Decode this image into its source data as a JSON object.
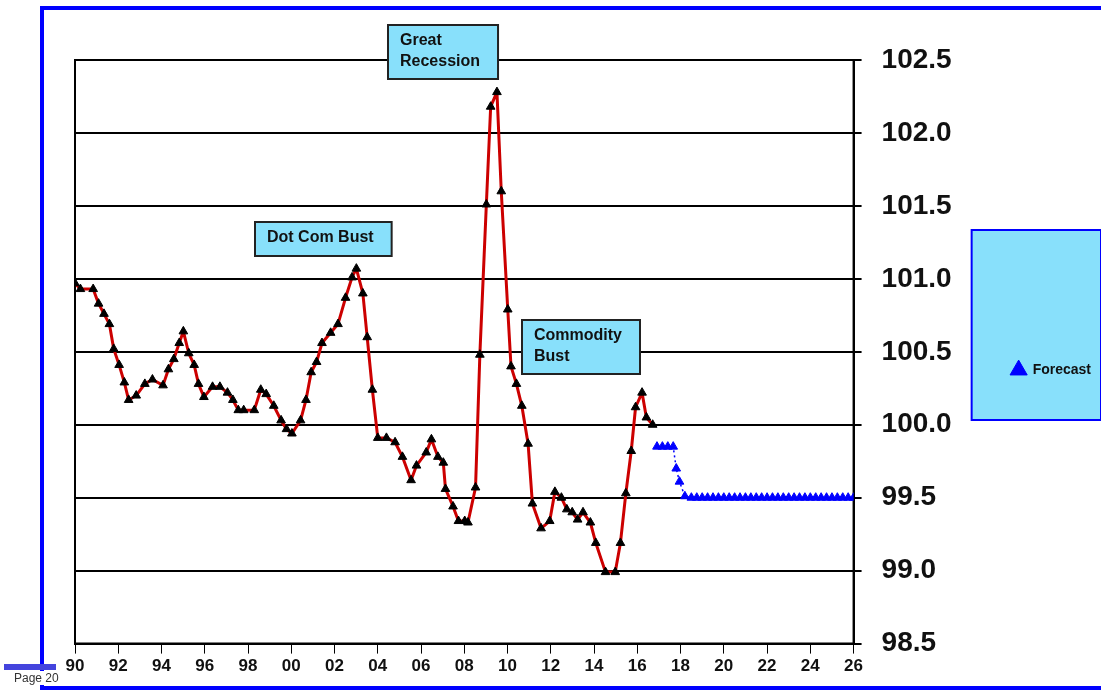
{
  "chart_data": {
    "type": "line",
    "xlim": [
      1990,
      2026
    ],
    "xticks": [
      {
        "value": 1990,
        "label": "90"
      },
      {
        "value": 1992,
        "label": "92"
      },
      {
        "value": 1994,
        "label": "94"
      },
      {
        "value": 1996,
        "label": "96"
      },
      {
        "value": 1998,
        "label": "98"
      },
      {
        "value": 2000,
        "label": "00"
      },
      {
        "value": 2002,
        "label": "02"
      },
      {
        "value": 2004,
        "label": "04"
      },
      {
        "value": 2006,
        "label": "06"
      },
      {
        "value": 2008,
        "label": "08"
      },
      {
        "value": 2010,
        "label": "10"
      },
      {
        "value": 2012,
        "label": "12"
      },
      {
        "value": 2014,
        "label": "14"
      },
      {
        "value": 2016,
        "label": "16"
      },
      {
        "value": 2018,
        "label": "18"
      },
      {
        "value": 2020,
        "label": "20"
      },
      {
        "value": 2022,
        "label": "22"
      },
      {
        "value": 2024,
        "label": "24"
      },
      {
        "value": 2026,
        "label": "26"
      }
    ],
    "ylim": [
      98.5,
      102.5
    ],
    "yticks": [
      {
        "value": 98.5,
        "label": "98.5"
      },
      {
        "value": 99,
        "label": "99.0"
      },
      {
        "value": 99.5,
        "label": "99.5"
      },
      {
        "value": 100,
        "label": "100.0"
      },
      {
        "value": 100.5,
        "label": "100.5"
      },
      {
        "value": 101,
        "label": "101.0"
      },
      {
        "value": 101.5,
        "label": "101.5"
      },
      {
        "value": 102,
        "label": "102.0"
      },
      {
        "value": 102.5,
        "label": "102.5"
      }
    ],
    "grid": "y",
    "legend": "right",
    "marker": "triangle",
    "line_style": "solid",
    "series": [
      {
        "color": "#cc0000",
        "x": [
          1990,
          1990.25,
          1990.84,
          1991.09,
          1991.34,
          1991.59,
          1991.79,
          1992.04,
          1992.28,
          1992.48,
          1992.83,
          1993.23,
          1993.58,
          1994.07,
          1994.32,
          1994.57,
          1994.82,
          1995.01,
          1995.26,
          1995.51,
          1995.71,
          1995.96,
          1996.36,
          1996.7,
          1997.05,
          1997.3,
          1997.55,
          1997.8,
          1998.29,
          1998.59,
          1998.84,
          1999.19,
          1999.53,
          1999.78,
          2000.03,
          2000.43,
          2000.68,
          2000.92,
          2001.17,
          2001.42,
          2001.82,
          2002.16,
          2002.51,
          2002.81,
          2003.01,
          2003.31,
          2003.51,
          2003.75,
          2004,
          2004.4,
          2004.8,
          2005.14,
          2005.54,
          2005.79,
          2006.24,
          2006.48,
          2006.78,
          2007.03,
          2007.13,
          2007.48,
          2007.73,
          2008.02,
          2008.17,
          2008.52,
          2008.72,
          2009.02,
          2009.22,
          2009.51,
          2009.71,
          2010.01,
          2010.16,
          2010.41,
          2010.66,
          2010.95,
          2011.15,
          2011.55,
          2011.95,
          2012.19,
          2012.49,
          2012.74,
          2012.99,
          2013.24,
          2013.49,
          2013.83,
          2014.08,
          2014.53,
          2014.98,
          2015.22,
          2015.47,
          2015.72,
          2015.92,
          2016.22,
          2016.42,
          2016.71
        ],
        "values": [
          100.97,
          100.93,
          100.93,
          100.83,
          100.76,
          100.69,
          100.52,
          100.41,
          100.29,
          100.17,
          100.2,
          100.28,
          100.31,
          100.27,
          100.38,
          100.45,
          100.56,
          100.64,
          100.49,
          100.41,
          100.28,
          100.19,
          100.26,
          100.26,
          100.22,
          100.17,
          100.1,
          100.1,
          100.1,
          100.24,
          100.21,
          100.13,
          100.03,
          99.97,
          99.94,
          100.03,
          100.17,
          100.36,
          100.43,
          100.56,
          100.63,
          100.69,
          100.87,
          101.01,
          101.07,
          100.9,
          100.6,
          100.24,
          99.91,
          99.91,
          99.88,
          99.78,
          99.62,
          99.72,
          99.81,
          99.9,
          99.78,
          99.74,
          99.56,
          99.44,
          99.34,
          99.34,
          99.33,
          99.57,
          100.48,
          101.51,
          102.18,
          102.28,
          101.6,
          100.79,
          100.4,
          100.28,
          100.13,
          99.87,
          99.46,
          99.29,
          99.34,
          99.54,
          99.5,
          99.42,
          99.4,
          99.35,
          99.4,
          99.33,
          99.19,
          98.99,
          98.99,
          99.19,
          99.53,
          99.82,
          100.12,
          100.22,
          100.05,
          100
        ]
      },
      {
        "name": "Forecast",
        "color": "#0000ff",
        "line_style": "dotted",
        "x": [
          2016.91,
          2017.16,
          2017.41,
          2017.66,
          2017.8,
          2017.95,
          2018.2,
          2018.5,
          2018.75,
          2019,
          2019.25,
          2019.5,
          2019.75,
          2020,
          2020.25,
          2020.5,
          2020.75,
          2021,
          2021.25,
          2021.5,
          2021.75,
          2022,
          2022.25,
          2022.5,
          2022.75,
          2023,
          2023.25,
          2023.5,
          2023.75,
          2024,
          2024.25,
          2024.5,
          2024.75,
          2025,
          2025.25,
          2025.5,
          2025.75,
          2026
        ],
        "values": [
          99.85,
          99.85,
          99.85,
          99.85,
          99.7,
          99.61,
          99.51,
          99.5,
          99.5,
          99.5,
          99.5,
          99.5,
          99.5,
          99.5,
          99.5,
          99.5,
          99.5,
          99.5,
          99.5,
          99.5,
          99.5,
          99.5,
          99.5,
          99.5,
          99.5,
          99.5,
          99.5,
          99.5,
          99.5,
          99.5,
          99.5,
          99.5,
          99.5,
          99.5,
          99.5,
          99.5,
          99.5,
          99.5
        ]
      }
    ],
    "annotations": [
      "Great\nRecession",
      "Dot Com Bust",
      "Commodity\nBust",
      "Page 20"
    ]
  }
}
